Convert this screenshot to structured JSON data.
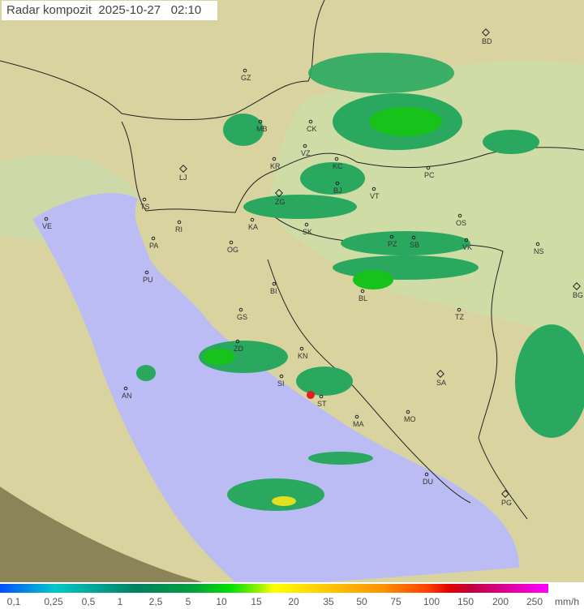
{
  "title": "Radar kompozit",
  "date": "2025-10-27",
  "time": "02:10",
  "colors": {
    "sea": "#bcbcf4",
    "terrain": "#d8cf9a",
    "outside": "#8a8458",
    "coverage": "#e4e0b0",
    "rain_light": "#2aa860",
    "rain_mid": "#17c21a",
    "rain_heavy": "#e0e020",
    "rain_extreme": "#e02020"
  },
  "cities": [
    {
      "code": "GZ",
      "capital": false
    },
    {
      "code": "BD",
      "capital": true
    },
    {
      "code": "MB",
      "capital": false
    },
    {
      "code": "CK",
      "capital": false
    },
    {
      "code": "VZ",
      "capital": false
    },
    {
      "code": "KR",
      "capital": false
    },
    {
      "code": "KC",
      "capital": false
    },
    {
      "code": "LJ",
      "capital": true
    },
    {
      "code": "PC",
      "capital": false
    },
    {
      "code": "ZG",
      "capital": true
    },
    {
      "code": "BJ",
      "capital": false
    },
    {
      "code": "VT",
      "capital": false
    },
    {
      "code": "TS",
      "capital": false
    },
    {
      "code": "KA",
      "capital": false
    },
    {
      "code": "SK",
      "capital": false
    },
    {
      "code": "OS",
      "capital": false
    },
    {
      "code": "VE",
      "capital": false
    },
    {
      "code": "RI",
      "capital": false
    },
    {
      "code": "PA",
      "capital": false
    },
    {
      "code": "OG",
      "capital": false
    },
    {
      "code": "PZ",
      "capital": false
    },
    {
      "code": "SB",
      "capital": false
    },
    {
      "code": "VK",
      "capital": false
    },
    {
      "code": "NS",
      "capital": false
    },
    {
      "code": "PU",
      "capital": false
    },
    {
      "code": "BI",
      "capital": false
    },
    {
      "code": "BL",
      "capital": false
    },
    {
      "code": "BG",
      "capital": true
    },
    {
      "code": "GS",
      "capital": false
    },
    {
      "code": "TZ",
      "capital": false
    },
    {
      "code": "ZD",
      "capital": false
    },
    {
      "code": "KN",
      "capital": false
    },
    {
      "code": "SA",
      "capital": true
    },
    {
      "code": "AN",
      "capital": false
    },
    {
      "code": "SI",
      "capital": false
    },
    {
      "code": "ST",
      "capital": false
    },
    {
      "code": "MO",
      "capital": false
    },
    {
      "code": "MA",
      "capital": false
    },
    {
      "code": "DU",
      "capital": false
    },
    {
      "code": "PG",
      "capital": true
    }
  ],
  "legend": {
    "labels": [
      "0,1",
      "0,25",
      "0,5",
      "1",
      "2,5",
      "5",
      "10",
      "15",
      "20",
      "35",
      "50",
      "75",
      "100",
      "150",
      "200",
      "250"
    ],
    "unit": "mm/h"
  }
}
